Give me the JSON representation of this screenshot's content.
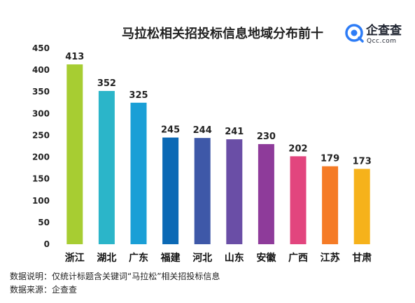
{
  "chart_data": {
    "type": "bar",
    "title": "马拉松相关招投标信息地域分布前十",
    "categories": [
      "浙江",
      "湖北",
      "广东",
      "福建",
      "河北",
      "山东",
      "安徽",
      "广西",
      "江苏",
      "甘肃"
    ],
    "values": [
      413,
      352,
      325,
      245,
      244,
      241,
      230,
      202,
      179,
      173
    ],
    "colors": [
      "#a7cd32",
      "#2bb5c9",
      "#1a9fd6",
      "#0b69b5",
      "#3e58a8",
      "#6a4ea6",
      "#8e3b9a",
      "#e2457e",
      "#f57b26",
      "#f6b21b"
    ],
    "ylim": [
      0,
      450
    ],
    "yticks": [
      0,
      50,
      100,
      150,
      200,
      250,
      300,
      350,
      400,
      450
    ],
    "xlabel": "",
    "ylabel": "",
    "grid": false,
    "legend": "none"
  },
  "logo": {
    "name": "企查查",
    "subtext": "Qcc.com",
    "icon": "qcc-logo-icon",
    "color": "#2d7cf6"
  },
  "notes": {
    "description": "数据说明：仅统计标题含关键词“马拉松”相关招投标信息",
    "source": "数据来源：企查查"
  }
}
